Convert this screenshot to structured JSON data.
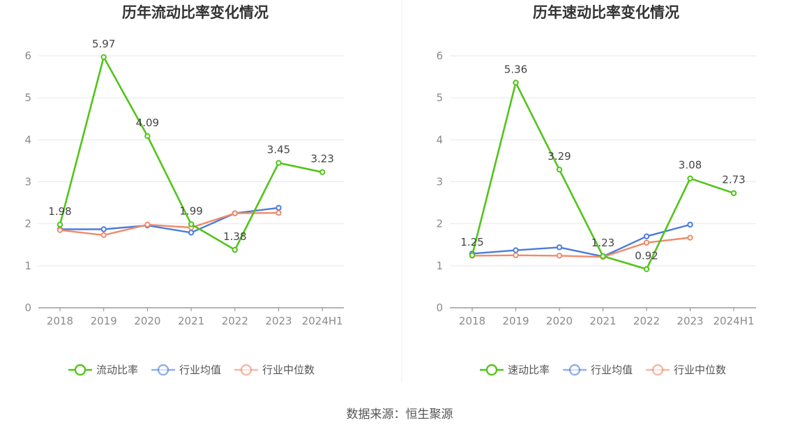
{
  "source_text": "数据来源：恒生聚源",
  "colors": {
    "primary": "#52c41a",
    "average": "#4a7cdb",
    "median": "#f08a6a",
    "grid": "#e4e6f0",
    "axis": "#888888"
  },
  "chart_data": [
    {
      "type": "line",
      "title": "历年流动比率变化情况",
      "categories": [
        "2018",
        "2019",
        "2020",
        "2021",
        "2022",
        "2023",
        "2024H1"
      ],
      "ylim": [
        0,
        6
      ],
      "yticks": [
        0,
        1,
        2,
        3,
        4,
        5,
        6
      ],
      "series": [
        {
          "name": "流动比率",
          "color": "#52c41a",
          "values": [
            1.98,
            5.97,
            4.09,
            1.99,
            1.38,
            3.45,
            3.23
          ],
          "labels": [
            "1.98",
            "5.97",
            "4.09",
            "1.99",
            "1.38",
            "3.45",
            "3.23"
          ]
        },
        {
          "name": "行业均值",
          "color": "#4a7cdb",
          "values": [
            1.87,
            1.87,
            1.96,
            1.79,
            2.25,
            2.38,
            null
          ]
        },
        {
          "name": "行业中位数",
          "color": "#f08a6a",
          "values": [
            1.85,
            1.73,
            1.98,
            1.91,
            2.25,
            2.26,
            null
          ]
        }
      ]
    },
    {
      "type": "line",
      "title": "历年速动比率变化情况",
      "categories": [
        "2018",
        "2019",
        "2020",
        "2021",
        "2022",
        "2023",
        "2024H1"
      ],
      "ylim": [
        0,
        6
      ],
      "yticks": [
        0,
        1,
        2,
        3,
        4,
        5,
        6
      ],
      "series": [
        {
          "name": "速动比率",
          "color": "#52c41a",
          "values": [
            1.25,
            5.36,
            3.29,
            1.23,
            0.92,
            3.08,
            2.73
          ],
          "labels": [
            "1.25",
            "5.36",
            "3.29",
            "1.23",
            "0.92",
            "3.08",
            "2.73"
          ]
        },
        {
          "name": "行业均值",
          "color": "#4a7cdb",
          "values": [
            1.29,
            1.37,
            1.44,
            1.22,
            1.7,
            1.98,
            null
          ]
        },
        {
          "name": "行业中位数",
          "color": "#f08a6a",
          "values": [
            1.24,
            1.25,
            1.24,
            1.21,
            1.55,
            1.67,
            null
          ]
        }
      ]
    }
  ]
}
